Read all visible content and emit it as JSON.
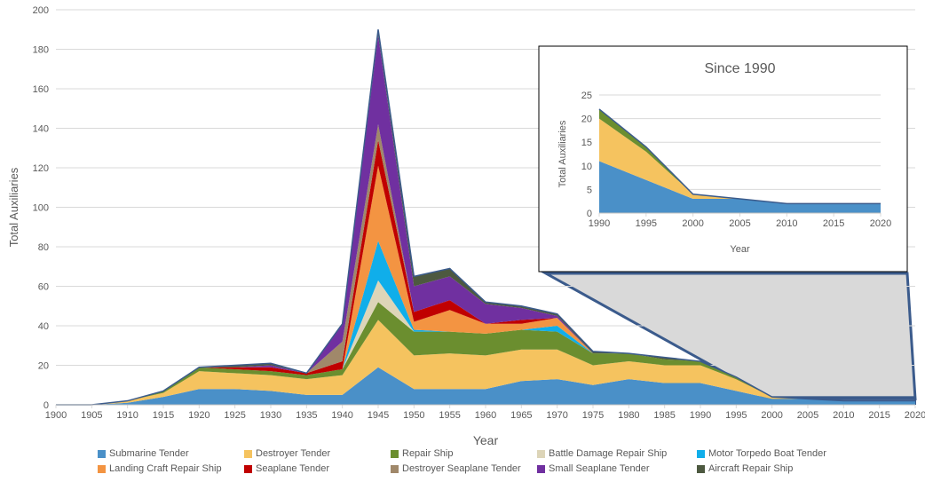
{
  "chart_data": [
    {
      "type": "area",
      "stacked": true,
      "title": "",
      "xlabel": "Year",
      "ylabel": "Total Auxiliaries",
      "x": [
        1900,
        1905,
        1910,
        1915,
        1920,
        1925,
        1930,
        1935,
        1940,
        1945,
        1950,
        1955,
        1960,
        1965,
        1970,
        1975,
        1980,
        1985,
        1990,
        1995,
        2000,
        2005,
        2010,
        2015,
        2020
      ],
      "xticks": [
        "1900",
        "1905",
        "1910",
        "1915",
        "1920",
        "1925",
        "1930",
        "1935",
        "1940",
        "1945",
        "1950",
        "1955",
        "1960",
        "1965",
        "1970",
        "1975",
        "1980",
        "1985",
        "1990",
        "1995",
        "2000",
        "2005",
        "2010",
        "2015",
        "2020"
      ],
      "yticks": [
        "0",
        "20",
        "40",
        "60",
        "80",
        "100",
        "120",
        "140",
        "160",
        "180",
        "200"
      ],
      "ylim": [
        0,
        200
      ],
      "grid": true,
      "legend_position": "bottom",
      "series": [
        {
          "name": "Submarine Tender",
          "color": "#4A90C8",
          "values": [
            0,
            0,
            1,
            4,
            8,
            8,
            7,
            5,
            5,
            19,
            8,
            8,
            8,
            12,
            13,
            10,
            13,
            11,
            11,
            7,
            3,
            3,
            2,
            2,
            2
          ]
        },
        {
          "name": "Destroyer Tender",
          "color": "#F5C35F",
          "values": [
            0,
            0,
            1,
            2,
            9,
            8,
            8,
            8,
            10,
            24,
            17,
            18,
            17,
            16,
            15,
            10,
            9,
            9,
            9,
            6,
            1,
            0,
            0,
            0,
            0
          ]
        },
        {
          "name": "Repair Ship",
          "color": "#6B8E2F",
          "values": [
            0,
            0,
            0,
            1,
            2,
            2,
            2,
            2,
            3,
            9,
            12,
            11,
            11,
            10,
            9,
            6,
            4,
            3,
            2,
            1,
            0,
            0,
            0,
            0,
            0
          ]
        },
        {
          "name": "Battle Damage Repair Ship",
          "color": "#DDD5B8",
          "values": [
            0,
            0,
            0,
            0,
            0,
            0,
            0,
            0,
            0,
            11,
            0,
            0,
            0,
            0,
            0,
            0,
            0,
            0,
            0,
            0,
            0,
            0,
            0,
            0,
            0
          ]
        },
        {
          "name": "Motor Torpedo Boat Tender",
          "color": "#10AEEA",
          "values": [
            0,
            0,
            0,
            0,
            0,
            0,
            0,
            0,
            0,
            20,
            1,
            0,
            0,
            0,
            3,
            0,
            0,
            0,
            0,
            0,
            0,
            0,
            0,
            0,
            0
          ]
        },
        {
          "name": "Landing Craft Repair Ship",
          "color": "#F39442",
          "values": [
            0,
            0,
            0,
            0,
            0,
            0,
            0,
            0,
            0,
            38,
            4,
            11,
            5,
            3,
            4,
            0,
            0,
            0,
            0,
            0,
            0,
            0,
            0,
            0,
            0
          ]
        },
        {
          "name": "Seaplane Tender",
          "color": "#C00000",
          "values": [
            0,
            0,
            0,
            0,
            0,
            1,
            2,
            1,
            4,
            13,
            5,
            5,
            0,
            2,
            0,
            0,
            0,
            0,
            0,
            0,
            0,
            0,
            0,
            0,
            0
          ]
        },
        {
          "name": "Destroyer Seaplane Tender",
          "color": "#A0886A",
          "values": [
            0,
            0,
            0,
            0,
            0,
            0,
            0,
            0,
            10,
            8,
            0,
            0,
            0,
            0,
            0,
            0,
            0,
            0,
            0,
            0,
            0,
            0,
            0,
            0,
            0
          ]
        },
        {
          "name": "Small Seaplane Tender",
          "color": "#7030A0",
          "values": [
            0,
            0,
            0,
            0,
            0,
            0,
            1,
            0,
            9,
            45,
            13,
            12,
            10,
            6,
            1,
            0,
            0,
            0,
            0,
            0,
            0,
            0,
            0,
            0,
            0
          ]
        },
        {
          "name": "Aircraft Repair Ship",
          "color": "#4D5940",
          "values": [
            0,
            0,
            0,
            0,
            0,
            1,
            1,
            0,
            0,
            3,
            5,
            4,
            1,
            1,
            1,
            1,
            0,
            1,
            0,
            0,
            0,
            0,
            0,
            0,
            0
          ]
        }
      ]
    },
    {
      "type": "area",
      "stacked": true,
      "title": "Since 1990",
      "xlabel": "Year",
      "ylabel": "Total Auxiliaries",
      "x": [
        1990,
        1995,
        2000,
        2005,
        2010,
        2015,
        2020
      ],
      "xticks": [
        "1990",
        "1995",
        "2000",
        "2005",
        "2010",
        "2015",
        "2020"
      ],
      "yticks": [
        "0",
        "5",
        "10",
        "15",
        "20",
        "25"
      ],
      "ylim": [
        0,
        25
      ],
      "grid": true,
      "series": [
        {
          "color": "#4A90C8",
          "values": [
            11,
            7,
            3,
            3,
            2,
            2,
            2
          ]
        },
        {
          "color": "#F5C35F",
          "values": [
            9,
            6,
            1,
            0,
            0,
            0,
            0
          ]
        },
        {
          "color": "#6B8E2F",
          "values": [
            2,
            1,
            0,
            0,
            0,
            0,
            0
          ]
        }
      ]
    }
  ],
  "colors": {
    "grid": "#D9D9D9",
    "axis_text": "#595959",
    "zoom_fill": "#D9D9D9",
    "zoom_stroke": "#3B5B8C"
  }
}
